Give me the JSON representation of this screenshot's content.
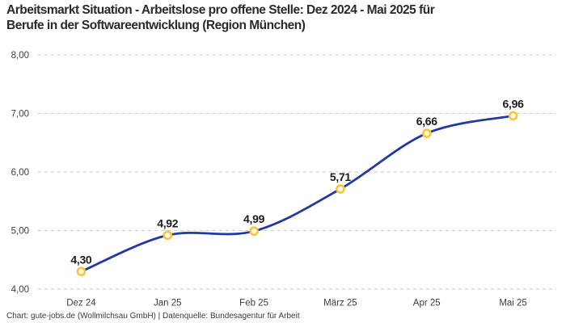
{
  "header": {
    "title_line1": "Arbeitsmarkt Situation - Arbeitslose pro offene Stelle: Dez 2024 - Mai 2025 für",
    "title_line2": "Berufe in der Softwareentwicklung (Region München)"
  },
  "footer": {
    "credit": "Chart: gute-jobs.de (Wollmilchsau GmbH) | Datenquelle: Bundesagentur für Arbeit"
  },
  "chart_data": {
    "type": "line",
    "title": "Arbeitsmarkt Situation - Arbeitslose pro offene Stelle: Dez 2024 - Mai 2025 für Berufe in der Softwareentwicklung (Region München)",
    "categories": [
      "Dez 24",
      "Jan 25",
      "Feb 25",
      "März 25",
      "Apr 25",
      "Mai 25"
    ],
    "values": [
      4.3,
      4.92,
      4.99,
      5.71,
      6.66,
      6.96
    ],
    "point_labels": [
      "4,30",
      "4,92",
      "4,99",
      "5,71",
      "6,66",
      "6,96"
    ],
    "y_ticks": [
      {
        "value": 4,
        "label": "4,00"
      },
      {
        "value": 5,
        "label": "5,00"
      },
      {
        "value": 6,
        "label": "6,00"
      },
      {
        "value": 7,
        "label": "7,00"
      },
      {
        "value": 8,
        "label": "8,00"
      }
    ],
    "ylim": [
      4,
      8
    ],
    "xlabel": "",
    "ylabel": "",
    "grid": true,
    "grid_style": "dashed",
    "legend": "none",
    "smooth": true,
    "line_color": "#2338a0",
    "marker_stroke_color": "#fdc42f",
    "marker_fill_color": "#ffffff",
    "grid_color": "#c9c9c9"
  }
}
